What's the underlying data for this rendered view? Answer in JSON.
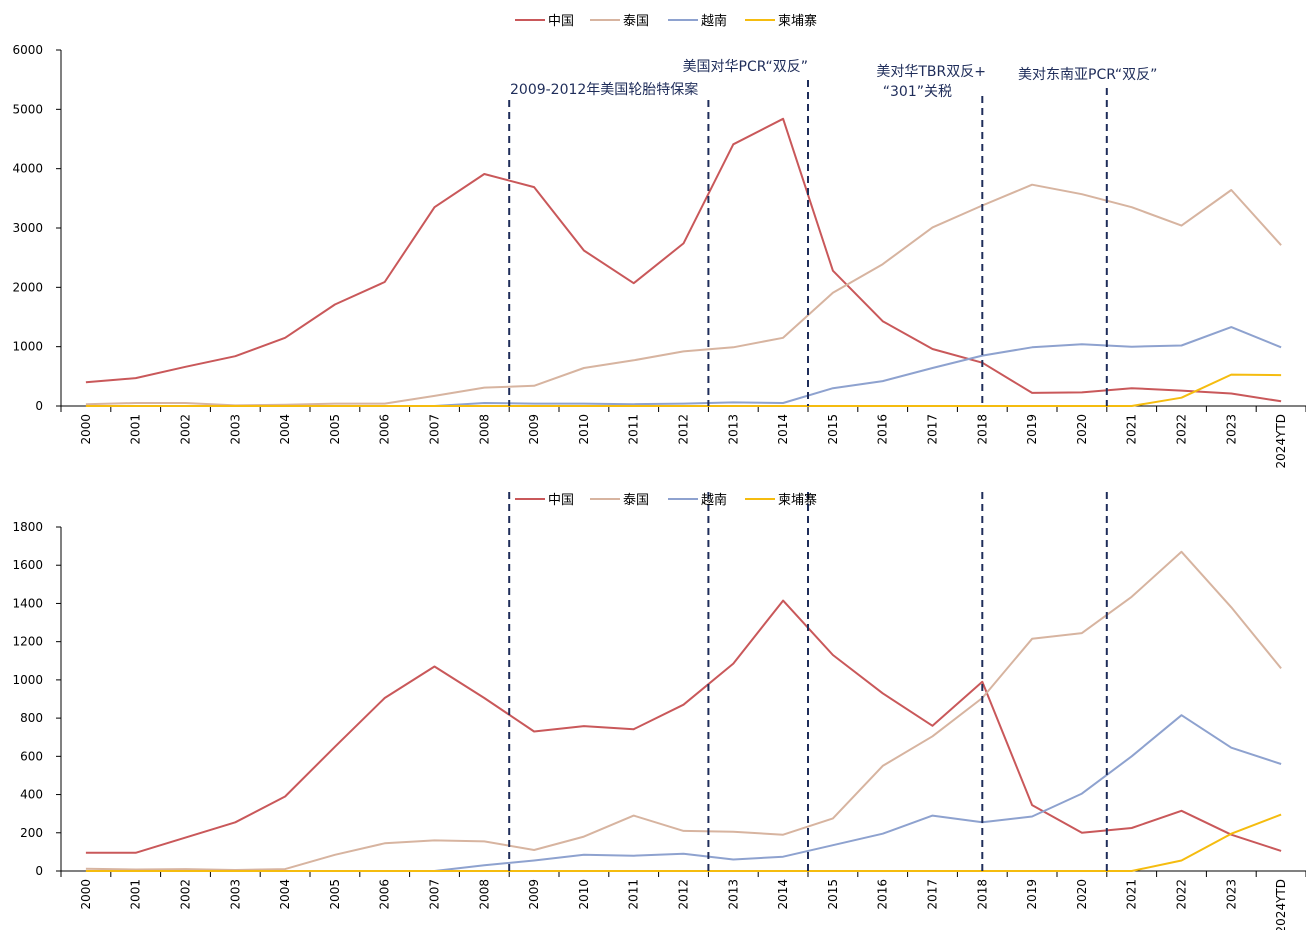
{
  "chart_data": [
    {
      "type": "line",
      "categories": [
        "2000",
        "2001",
        "2002",
        "2003",
        "2004",
        "2005",
        "2006",
        "2007",
        "2008",
        "2009",
        "2010",
        "2011",
        "2012",
        "2013",
        "2014",
        "2015",
        "2016",
        "2017",
        "2018",
        "2019",
        "2020",
        "2021",
        "2022",
        "2023",
        "2024YTD"
      ],
      "ylim": [
        0,
        6000
      ],
      "yticks": [
        "0",
        "1000",
        "2000",
        "3000",
        "4000",
        "5000",
        "6000"
      ],
      "legend": "top-center",
      "grid": false,
      "series": [
        {
          "name": "中国",
          "color": "#c9585a",
          "values": [
            400,
            470,
            660,
            840,
            1150,
            1710,
            2090,
            3350,
            3910,
            3690,
            2620,
            2070,
            2740,
            4410,
            4840,
            2280,
            1430,
            960,
            730,
            220,
            230,
            300,
            260,
            210,
            80
          ]
        },
        {
          "name": "泰国",
          "color": "#d7b4a0",
          "values": [
            30,
            50,
            50,
            10,
            20,
            40,
            40,
            170,
            310,
            340,
            640,
            770,
            920,
            990,
            1150,
            1910,
            2390,
            3010,
            3380,
            3730,
            3570,
            3350,
            3040,
            3640,
            2710
          ]
        },
        {
          "name": "越南",
          "color": "#8ea2cf",
          "values": [
            0,
            0,
            0,
            0,
            0,
            0,
            0,
            0,
            50,
            40,
            40,
            30,
            40,
            60,
            50,
            300,
            420,
            640,
            850,
            990,
            1040,
            1000,
            1020,
            1330,
            990
          ]
        },
        {
          "name": "柬埔寨",
          "color": "#f5bc0f",
          "values": [
            0,
            0,
            0,
            0,
            0,
            0,
            0,
            0,
            0,
            0,
            0,
            0,
            0,
            0,
            0,
            0,
            0,
            0,
            0,
            0,
            0,
            0,
            140,
            530,
            520
          ]
        }
      ],
      "annotations": [
        {
          "text": "2009-2012年美国轮胎特保案",
          "between": [
            "2008",
            "2009"
          ]
        },
        {
          "text": "美国对华PCR“双反”",
          "between": [
            "2014",
            "2015"
          ]
        },
        {
          "text": "美对华TBR双反+",
          "text2": "“301”关税",
          "at": "2018"
        },
        {
          "text": "美对东南亚PCR“双反”",
          "between": [
            "2020",
            "2021"
          ]
        }
      ],
      "dashed_markers": [
        {
          "between": [
            "2008",
            "2009"
          ]
        },
        {
          "between": [
            "2012",
            "2013"
          ]
        },
        {
          "between": [
            "2014",
            "2015"
          ]
        },
        {
          "at": "2018"
        },
        {
          "between": [
            "2020",
            "2021"
          ]
        }
      ]
    },
    {
      "type": "line",
      "categories": [
        "2000",
        "2001",
        "2002",
        "2003",
        "2004",
        "2005",
        "2006",
        "2007",
        "2008",
        "2009",
        "2010",
        "2011",
        "2012",
        "2013",
        "2014",
        "2015",
        "2016",
        "2017",
        "2018",
        "2019",
        "2020",
        "2021",
        "2022",
        "2023",
        "2024YTD"
      ],
      "ylim": [
        0,
        1800
      ],
      "yticks": [
        "0",
        "200",
        "400",
        "600",
        "800",
        "1000",
        "1200",
        "1400",
        "1600",
        "1800"
      ],
      "legend": "top-center",
      "grid": false,
      "series": [
        {
          "name": "中国",
          "color": "#c9585a",
          "values": [
            95,
            95,
            175,
            255,
            390,
            650,
            905,
            1070,
            905,
            730,
            758,
            742,
            870,
            1085,
            1415,
            1130,
            930,
            760,
            990,
            345,
            200,
            225,
            315,
            190,
            105
          ]
        },
        {
          "name": "泰国",
          "color": "#d7b4a0",
          "values": [
            12,
            8,
            10,
            5,
            10,
            85,
            145,
            160,
            155,
            110,
            180,
            290,
            210,
            205,
            190,
            275,
            550,
            705,
            905,
            1215,
            1245,
            1435,
            1670,
            1380,
            1060
          ]
        },
        {
          "name": "越南",
          "color": "#8ea2cf",
          "values": [
            0,
            0,
            0,
            0,
            0,
            0,
            0,
            0,
            30,
            55,
            85,
            80,
            90,
            60,
            75,
            135,
            195,
            290,
            255,
            285,
            405,
            600,
            815,
            645,
            560
          ]
        },
        {
          "name": "柬埔寨",
          "color": "#f5bc0f",
          "values": [
            0,
            0,
            0,
            0,
            0,
            0,
            0,
            0,
            0,
            0,
            0,
            0,
            0,
            0,
            0,
            0,
            0,
            0,
            0,
            0,
            0,
            0,
            55,
            195,
            295
          ]
        }
      ],
      "dashed_markers": [
        {
          "between": [
            "2008",
            "2009"
          ]
        },
        {
          "between": [
            "2012",
            "2013"
          ]
        },
        {
          "between": [
            "2014",
            "2015"
          ]
        },
        {
          "at": "2018"
        },
        {
          "between": [
            "2020",
            "2021"
          ]
        }
      ]
    }
  ],
  "colors": {
    "axis": "#000000",
    "marker_line": "#1f2d5a"
  }
}
